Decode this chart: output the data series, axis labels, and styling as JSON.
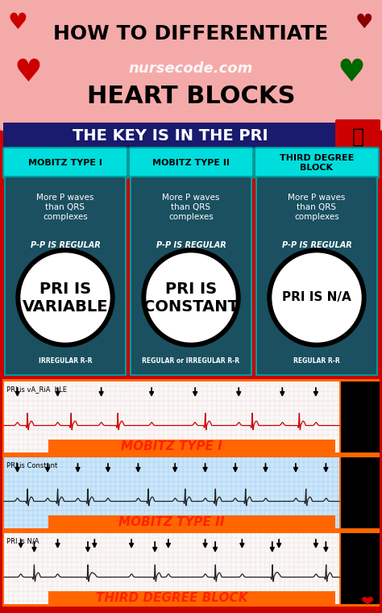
{
  "title_line1": "HOW TO DIFFERENTIATE",
  "title_line2": "HEART BLOCKS",
  "subtitle": "nursecode.com",
  "key_text": "THE KEY IS IN THE PRI",
  "bg_main": "#CC0000",
  "header_bg": "#F5AAAA",
  "key_banner_bg": "#1a1a6e",
  "columns": [
    {
      "label": "MOBITZ TYPE I",
      "top_text": "More P waves\nthan QRS\ncomplexes",
      "pp_text": "P-P IS REGULAR",
      "pri_text": "PRI IS\nVARIABLE",
      "rr_text": "IRREGULAR R-R"
    },
    {
      "label": "MOBITZ TYPE II",
      "top_text": "More P waves\nthan QRS\ncomplexes",
      "pp_text": "P-P IS REGULAR",
      "pri_text": "PRI IS\nCONSTANT",
      "rr_text": "REGULAR or IRREGULAR R-R"
    },
    {
      "label": "THIRD DEGREE\nBLOCK",
      "top_text": "More P waves\nthan QRS\ncomplexes",
      "pp_text": "P-P IS REGULAR",
      "pri_text": "PRI IS N/A",
      "rr_text": "REGULAR R-R"
    }
  ],
  "ecg_strips": [
    {
      "label": "MOBITZ TYPE I",
      "pri_label": "PRI is vA_RiA  bLE",
      "bg": "#F8F8F8",
      "grid_color": "#FFAAAA",
      "wave_color": "#CC0000",
      "n_thumbs": 1,
      "label_color": "#FF2200"
    },
    {
      "label": "MOBITZ TYPE II",
      "pri_label": "PRI is Constant",
      "bg": "#C8E8F8",
      "grid_color": "#8888FF",
      "wave_color": "#222222",
      "n_thumbs": 2,
      "label_color": "#FF2200"
    },
    {
      "label": "THIRD DEGREE BLOCK",
      "pri_label": "PRI is N/A",
      "bg": "#F8F8F8",
      "grid_color": "#FFAAAA",
      "wave_color": "#222222",
      "n_thumbs": 3,
      "label_color": "#FF2200"
    }
  ]
}
